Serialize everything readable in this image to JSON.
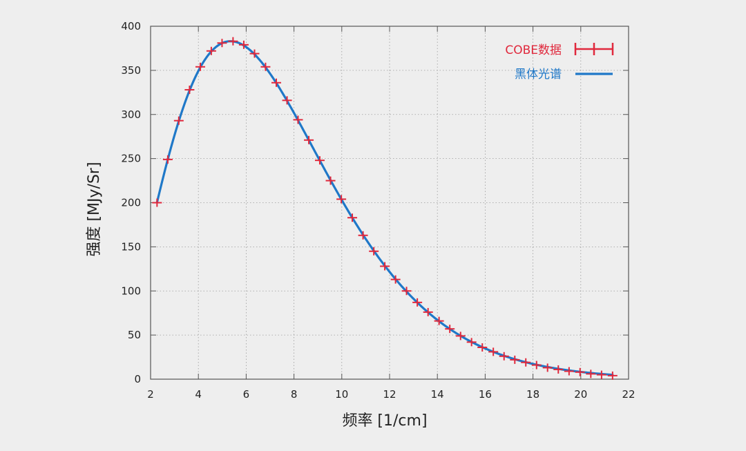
{
  "chart_data": {
    "type": "scatter",
    "xlabel": "频率 [1/cm]",
    "ylabel": "强度 [MJy/Sr]",
    "xlim": [
      2,
      22
    ],
    "ylim": [
      0,
      400
    ],
    "xticks": [
      "2",
      "4",
      "6",
      "8",
      "10",
      "12",
      "14",
      "16",
      "18",
      "20",
      "22"
    ],
    "yticks": [
      "0",
      "50",
      "100",
      "150",
      "200",
      "250",
      "300",
      "350",
      "400"
    ],
    "grid": true,
    "legend_position": "top-right",
    "colors": {
      "data": "#e0283c",
      "fit": "#1f78c8",
      "grid": "#9a9a9a",
      "frame": "#555555"
    },
    "series": [
      {
        "name": "COBE数据",
        "kind": "points-with-errorbars",
        "x": [
          2.27,
          2.72,
          3.18,
          3.63,
          4.08,
          4.54,
          4.99,
          5.45,
          5.9,
          6.35,
          6.81,
          7.26,
          7.71,
          8.17,
          8.62,
          9.08,
          9.53,
          9.98,
          10.44,
          10.89,
          11.34,
          11.8,
          12.25,
          12.71,
          13.16,
          13.61,
          14.07,
          14.52,
          14.97,
          15.43,
          15.88,
          16.34,
          16.79,
          17.24,
          17.7,
          18.15,
          18.61,
          19.06,
          19.51,
          19.97,
          20.42,
          20.87,
          21.33
        ],
        "y": [
          200,
          249,
          293,
          328,
          354,
          372,
          381,
          383,
          379,
          369,
          354,
          336,
          316,
          294,
          271,
          248,
          225,
          204,
          183,
          163,
          145,
          128,
          113,
          100,
          87,
          76,
          66,
          57,
          49,
          42,
          36,
          31,
          26,
          22,
          19,
          16,
          13,
          11,
          9,
          8,
          6,
          5,
          4
        ]
      },
      {
        "name": "黑体光谱",
        "kind": "line",
        "model": "planck",
        "temperature_K": 2.725
      }
    ]
  }
}
